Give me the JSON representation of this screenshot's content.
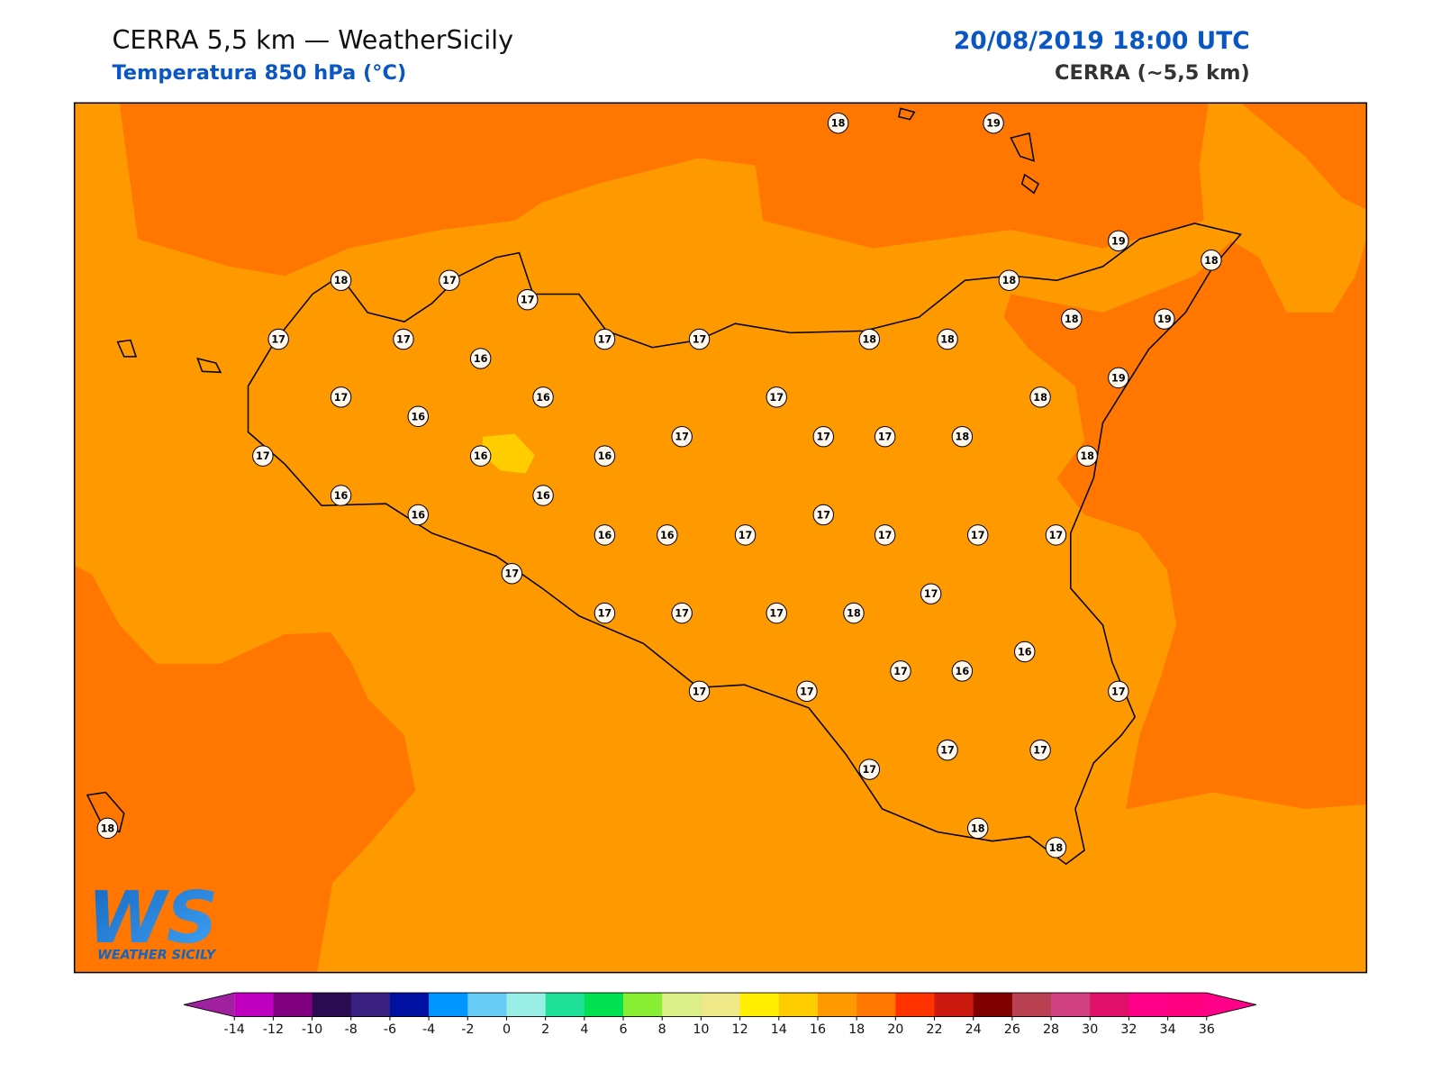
{
  "header": {
    "title": "CERRA 5,5 km — WeatherSicily",
    "subtitle": "Temperatura 850 hPa (°C)",
    "datetime": "20/08/2019 18:00 UTC",
    "source": "CERRA (~5,5 km)"
  },
  "logo": {
    "letters": "WS",
    "name": "WEATHER SICILY"
  },
  "stations": [
    18,
    19,
    19,
    18,
    18,
    17,
    17,
    18,
    17,
    17,
    17,
    17,
    18,
    18,
    18,
    19,
    16,
    19,
    17,
    16,
    16,
    17,
    18,
    17,
    17,
    17,
    18,
    17,
    16,
    16,
    18,
    16,
    16,
    16,
    17,
    16,
    16,
    17,
    17,
    17,
    17,
    17,
    17,
    17,
    17,
    17,
    18,
    16,
    17,
    16,
    17,
    17,
    17,
    17,
    17,
    17,
    18,
    18,
    18
  ],
  "colorbar": {
    "ticks": [
      -14,
      -12,
      -10,
      -8,
      -6,
      -4,
      -2,
      0,
      2,
      4,
      6,
      8,
      10,
      12,
      14,
      16,
      18,
      20,
      22,
      24,
      26,
      28,
      30,
      32,
      34,
      36
    ],
    "colors": [
      "#c000c0",
      "#800080",
      "#2a0a50",
      "#3a2080",
      "#0010a0",
      "#0096ff",
      "#66ccf5",
      "#99eee6",
      "#1ee096",
      "#00e050",
      "#88ee33",
      "#dcee88",
      "#eee888",
      "#ffee00",
      "#ffcc00",
      "#ff9900",
      "#ff7700",
      "#ff3300",
      "#cc1a10",
      "#800000",
      "#b84050",
      "#d04080",
      "#e0106a",
      "#ff0088",
      "#ff0080"
    ],
    "under": "#a020a0",
    "over": "#ff0088"
  }
}
